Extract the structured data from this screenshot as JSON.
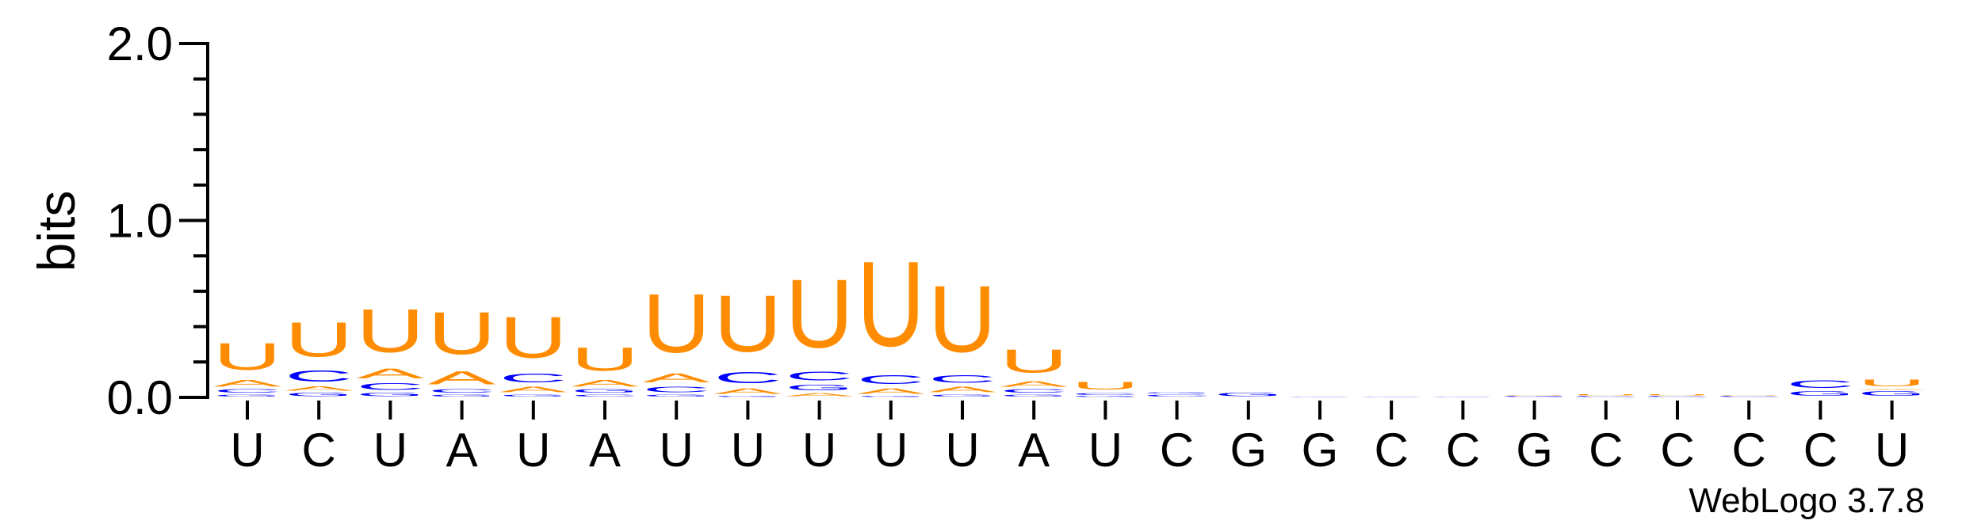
{
  "chart_data": {
    "type": "sequence-logo",
    "ylabel": "bits",
    "ylim": [
      0,
      2.0
    ],
    "yticks": [
      {
        "value": 0.0,
        "label": "0.0"
      },
      {
        "value": 1.0,
        "label": "1.0"
      },
      {
        "value": 2.0,
        "label": "2.0"
      }
    ],
    "y_minor_step": 0.2,
    "consensus": [
      "U",
      "C",
      "U",
      "A",
      "U",
      "A",
      "U",
      "U",
      "U",
      "U",
      "U",
      "A",
      "U",
      "C",
      "G",
      "G",
      "C",
      "C",
      "G",
      "C",
      "C",
      "C",
      "C",
      "U"
    ],
    "colors": {
      "U": "#ff8c00",
      "A": "#ff8c00",
      "C": "#0000ff",
      "G": "#0000ff"
    },
    "stacks": [
      [
        [
          "G",
          0.02
        ],
        [
          "C",
          0.03
        ],
        [
          "A",
          0.06
        ],
        [
          "U",
          0.24
        ]
      ],
      [
        [
          "G",
          0.03
        ],
        [
          "A",
          0.04
        ],
        [
          "C",
          0.1
        ],
        [
          "U",
          0.31
        ]
      ],
      [
        [
          "G",
          0.03
        ],
        [
          "C",
          0.06
        ],
        [
          "A",
          0.09
        ],
        [
          "U",
          0.39
        ]
      ],
      [
        [
          "G",
          0.02
        ],
        [
          "C",
          0.03
        ],
        [
          "A",
          0.12
        ],
        [
          "U",
          0.38
        ]
      ],
      [
        [
          "G",
          0.02
        ],
        [
          "A",
          0.05
        ],
        [
          "C",
          0.08
        ],
        [
          "U",
          0.37
        ]
      ],
      [
        [
          "C",
          0.02
        ],
        [
          "G",
          0.03
        ],
        [
          "A",
          0.06
        ],
        [
          "U",
          0.21
        ]
      ],
      [
        [
          "G",
          0.02
        ],
        [
          "C",
          0.05
        ],
        [
          "A",
          0.08
        ],
        [
          "U",
          0.53
        ]
      ],
      [
        [
          "G",
          0.01
        ],
        [
          "A",
          0.05
        ],
        [
          "C",
          0.1
        ],
        [
          "U",
          0.51
        ]
      ],
      [
        [
          "A",
          0.03
        ],
        [
          "G",
          0.05
        ],
        [
          "C",
          0.08
        ],
        [
          "U",
          0.62
        ]
      ],
      [
        [
          "G",
          0.01
        ],
        [
          "A",
          0.05
        ],
        [
          "C",
          0.08
        ],
        [
          "U",
          0.77
        ]
      ],
      [
        [
          "G",
          0.02
        ],
        [
          "A",
          0.05
        ],
        [
          "C",
          0.07
        ],
        [
          "U",
          0.6
        ]
      ],
      [
        [
          "G",
          0.02
        ],
        [
          "C",
          0.03
        ],
        [
          "A",
          0.05
        ],
        [
          "U",
          0.21
        ]
      ],
      [
        [
          "G",
          0.01
        ],
        [
          "C",
          0.02
        ],
        [
          "U",
          0.07
        ]
      ],
      [
        [
          "C",
          0.02
        ],
        [
          "G",
          0.01
        ]
      ],
      [
        [
          "G",
          0.03
        ]
      ],
      [
        [
          "G",
          0.004
        ]
      ],
      [
        [
          "C",
          0.003
        ]
      ],
      [
        [
          "C",
          0.003
        ]
      ],
      [
        [
          "G",
          0.01
        ],
        [
          "U",
          0.004
        ]
      ],
      [
        [
          "C",
          0.01
        ],
        [
          "U",
          0.01
        ]
      ],
      [
        [
          "C",
          0.01
        ],
        [
          "U",
          0.01
        ]
      ],
      [
        [
          "C",
          0.01
        ],
        [
          "U",
          0.004
        ]
      ],
      [
        [
          "G",
          0.04
        ],
        [
          "C",
          0.07
        ]
      ],
      [
        [
          "G",
          0.04
        ],
        [
          "A",
          0.01
        ],
        [
          "U",
          0.06
        ]
      ]
    ]
  },
  "footer": {
    "label": "WebLogo 3.7.8"
  }
}
